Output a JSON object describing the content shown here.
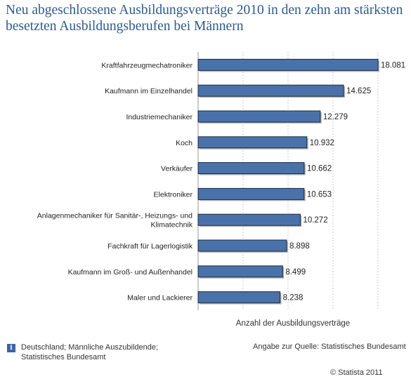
{
  "title": "Neu abgeschlossene Ausbildungsverträge 2010 in den zehn am stärksten besetzten Ausbildungsberufen bei Männern",
  "footer": {
    "info_icon": "i",
    "note_line1": "Deutschland; Männliche Auszubildende;",
    "note_line2": "Statistisches Bundesamt",
    "source": "Angabe zur Quelle: Statistisches Bundesamt",
    "copyright": "© Statista 2011"
  },
  "colors": {
    "bar": "#4a72aa",
    "bar_edge": "#1a2a40",
    "title": "#2f5a8a"
  },
  "chart_data": {
    "type": "bar",
    "orientation": "horizontal",
    "title": "Neu abgeschlossene Ausbildungsverträge 2010 in den zehn am stärksten besetzten Ausbildungsberufen bei Männern",
    "xlabel": "Anzahl der Ausbildungsverträge",
    "ylabel": "",
    "xlim": [
      0,
      18081
    ],
    "grid": true,
    "categories": [
      [
        "Kraftfahrzeugmechatroniker"
      ],
      [
        "Kaufmann im Einzelhandel"
      ],
      [
        "Industriemechaniker"
      ],
      [
        "Koch"
      ],
      [
        "Verkäufer"
      ],
      [
        "Elektroniker"
      ],
      [
        "Anlagenmechaniker für Sanitär-, Heizungs- und",
        "Klimatechnik"
      ],
      [
        "Fachkraft für Lagerlogistik"
      ],
      [
        "Kaufmann im Groß- und Außenhandel"
      ],
      [
        "Maler und Lackierer"
      ]
    ],
    "values": [
      18081,
      14625,
      12279,
      10932,
      10662,
      10653,
      10272,
      8898,
      8499,
      8238
    ],
    "value_labels": [
      "18.081",
      "14.625",
      "12.279",
      "10.932",
      "10.662",
      "10.653",
      "10.272",
      "8.898",
      "8.499",
      "8.238"
    ]
  }
}
